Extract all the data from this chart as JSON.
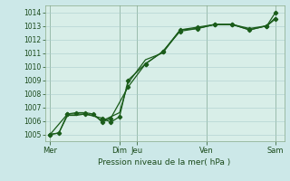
{
  "background_color": "#cce8e8",
  "plot_bg_color": "#d8eee8",
  "grid_color": "#aacccc",
  "line_color": "#1a5c1a",
  "marker_color": "#1a5c1a",
  "xlabel": "Pression niveau de la mer( hPa )",
  "ylim": [
    1004.5,
    1014.5
  ],
  "yticks": [
    1005,
    1006,
    1007,
    1008,
    1009,
    1010,
    1011,
    1012,
    1013,
    1014
  ],
  "xtick_positions": [
    0,
    4,
    5,
    9,
    13
  ],
  "xtick_labels": [
    "Mer",
    "Dim",
    "Jeu",
    "Ven",
    "Sam"
  ],
  "vline_positions": [
    0,
    4,
    5,
    9,
    13
  ],
  "xlim": [
    -0.3,
    13.5
  ],
  "series1_x": [
    0,
    0.5,
    1.0,
    1.5,
    2.0,
    2.5,
    3.0,
    3.5,
    4.5,
    5.5,
    6.5,
    7.5,
    8.5,
    9.5,
    10.5,
    11.5,
    12.5,
    13.0
  ],
  "series1_y": [
    1005.0,
    1005.1,
    1006.5,
    1006.6,
    1006.6,
    1006.5,
    1005.9,
    1006.2,
    1008.5,
    1010.2,
    1011.1,
    1012.6,
    1012.8,
    1013.1,
    1013.1,
    1012.7,
    1013.0,
    1013.5
  ],
  "series2_x": [
    0,
    0.5,
    1.0,
    1.5,
    2.0,
    2.5,
    3.0,
    3.5,
    4.0,
    4.5,
    5.5,
    6.5,
    7.5,
    8.5,
    9.5,
    10.5,
    11.5,
    12.5,
    13.0
  ],
  "series2_y": [
    1005.0,
    1005.1,
    1006.4,
    1006.4,
    1006.5,
    1006.4,
    1006.0,
    1006.3,
    1006.6,
    1008.8,
    1010.5,
    1011.0,
    1012.7,
    1012.8,
    1013.1,
    1013.1,
    1012.7,
    1013.0,
    1013.6
  ],
  "series3_x": [
    0,
    1.0,
    2.0,
    3.0,
    3.5,
    4.0,
    4.5,
    5.5,
    6.5,
    7.5,
    8.5,
    9.5,
    10.5,
    11.5,
    12.5,
    13.0
  ],
  "series3_y": [
    1005.0,
    1006.5,
    1006.5,
    1006.2,
    1005.9,
    1006.3,
    1009.0,
    1010.2,
    1011.1,
    1012.7,
    1012.9,
    1013.1,
    1013.1,
    1012.8,
    1013.0,
    1014.0
  ],
  "xlabel_fontsize": 6.5,
  "ytick_fontsize": 5.5,
  "xtick_fontsize": 6.0
}
